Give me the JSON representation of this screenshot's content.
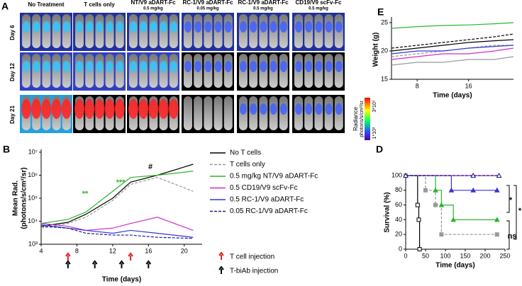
{
  "panel_a": {
    "panel": "A",
    "columns": [
      {
        "title": "No Treatment"
      },
      {
        "title": "T cells only"
      },
      {
        "title": "NT/V9 aDART-Fc",
        "dose": "0.5 mg/kg"
      },
      {
        "title": "RC-1/V9 aDART-Fc",
        "dose": "0.05 mg/kg"
      },
      {
        "title": "RC-1/V9 aDART-Fc",
        "dose": "0.5 mg/kg"
      },
      {
        "title": "CD19/V9 scFv-Fc",
        "dose": "0.5 mg/kg"
      }
    ],
    "rows": [
      "Day 6",
      "Day 12",
      "Day 21"
    ]
  },
  "colorbar": {
    "title": "Radiance",
    "unit": "photons/s/cm²/sr",
    "max_label": "3*10⁵",
    "min_label": "1*10³"
  },
  "chart_data": [
    {
      "type": "line",
      "panel": "B",
      "ylog": true,
      "xlabel": "Time (days)",
      "ylabel": "Mean Rad.",
      "ylabel_unit": "(photons/s/cm²/sr)",
      "x": [
        4,
        7,
        9,
        12,
        14,
        17,
        21
      ],
      "xlim": [
        4,
        22
      ],
      "xticks": [
        4,
        8,
        12,
        16,
        20
      ],
      "ylim": [
        1000,
        10000000
      ],
      "yticks": [
        {
          "value": 1000,
          "label": "10³"
        },
        {
          "value": 10000,
          "label": "10⁴"
        },
        {
          "value": 100000,
          "label": "10⁵"
        },
        {
          "value": 1000000,
          "label": "10⁶"
        },
        {
          "value": 10000000,
          "label": "10⁷"
        }
      ],
      "legend": true,
      "series": [
        {
          "name": "No T cells",
          "color": "#000000",
          "values": [
            6000,
            9000,
            20000,
            100000,
            500000,
            1000000,
            3000000
          ]
        },
        {
          "name": "T cells only",
          "color": "#999999",
          "dash": true,
          "values": [
            5000,
            8000,
            15000,
            80000,
            400000,
            800000,
            200000
          ]
        },
        {
          "name": "0.5 mg/kg NT/V9 aDART-Fc",
          "color": "#2db52d",
          "values": [
            8000,
            12000,
            25000,
            200000,
            800000,
            1000000,
            1500000
          ]
        },
        {
          "name": "0.5  CD19/V9 scFv-Fc",
          "color": "#cc2fcc",
          "values": [
            8000,
            6000,
            4000,
            5000,
            8000,
            15000,
            4000
          ]
        },
        {
          "name": "0.5 RC-1/V9 aDART-Fc",
          "color": "#3535d6",
          "values": [
            7000,
            5000,
            4000,
            3000,
            4000,
            3000,
            2000
          ]
        },
        {
          "name": "0.05 RC-1/V9 aDART-Fc",
          "color": "#1a1a8c",
          "dash": true,
          "values": [
            6000,
            5000,
            3000,
            2500,
            2500,
            2000,
            1800
          ]
        }
      ],
      "annotations": [
        "**",
        "***",
        "#"
      ],
      "t_cell_injections": [
        7,
        14
      ],
      "biab_injections": [
        7,
        10,
        13,
        16
      ],
      "t_cell_injection_label": "T cell injection",
      "biab_injection_label": "T-biAb injection"
    },
    {
      "type": "line",
      "panel": "D",
      "step": true,
      "xlabel": "Time (days)",
      "ylabel": "Survival (%)",
      "xlim": [
        0,
        250
      ],
      "xticks": [
        0,
        50,
        100,
        150,
        200,
        250
      ],
      "ylim": [
        0,
        100
      ],
      "yticks": [
        0,
        20,
        40,
        60,
        80,
        100
      ],
      "series": [
        {
          "color": "#000000",
          "marker": "square",
          "x": [
            0,
            30,
            33,
            35
          ],
          "values": [
            100,
            60,
            40,
            0
          ]
        },
        {
          "color": "#999999",
          "marker": "square",
          "dash": true,
          "x": [
            0,
            50,
            75,
            90,
            230
          ],
          "values": [
            100,
            80,
            60,
            20,
            20
          ]
        },
        {
          "color": "#2db52d",
          "marker": "triangle",
          "x": [
            0,
            75,
            90,
            120,
            230
          ],
          "values": [
            100,
            80,
            60,
            40,
            40
          ]
        },
        {
          "color": "#3535d6",
          "marker": "triangle",
          "x": [
            0,
            115,
            170,
            230
          ],
          "values": [
            100,
            80,
            80,
            80
          ]
        },
        {
          "color": "#cc2fcc",
          "marker": "triangle",
          "x": [
            0,
            170,
            235
          ],
          "values": [
            100,
            100,
            100
          ]
        },
        {
          "color": "#1a1a8c",
          "marker": "triangle",
          "dash": true,
          "x": [
            0,
            170,
            235
          ],
          "values": [
            100,
            100,
            100
          ]
        }
      ],
      "annotations": [
        "*",
        "*",
        "ns"
      ]
    },
    {
      "type": "line",
      "panel": "E",
      "xlabel": "Time (days)",
      "ylabel": "Weight (g)",
      "x": [
        4,
        8,
        12,
        16,
        20,
        23
      ],
      "xlim": [
        4,
        23
      ],
      "xticks": [
        8,
        16
      ],
      "ylim": [
        15,
        25.5
      ],
      "yticks": [
        15,
        20,
        25
      ],
      "series": [
        {
          "color": "#2db52d",
          "values": [
            24,
            24.3,
            24.5,
            24.6,
            24.8,
            25
          ]
        },
        {
          "color": "#000000",
          "values": [
            20,
            20.5,
            21,
            21.5,
            21.8,
            22
          ]
        },
        {
          "color": "#000000",
          "dash": true,
          "values": [
            20.5,
            21,
            21.5,
            22,
            22.5,
            23
          ]
        },
        {
          "color": "#999999",
          "dash": true,
          "values": [
            19,
            19.5,
            20,
            20.5,
            21,
            21
          ]
        },
        {
          "color": "#3535d6",
          "values": [
            19.5,
            20,
            20,
            20.5,
            20.8,
            21
          ]
        },
        {
          "color": "#cc2fcc",
          "values": [
            18.5,
            19,
            19.5,
            19.5,
            20,
            20.5
          ]
        },
        {
          "color": "#999999",
          "values": [
            17.5,
            18,
            18,
            18.5,
            18.5,
            19
          ]
        }
      ]
    }
  ]
}
